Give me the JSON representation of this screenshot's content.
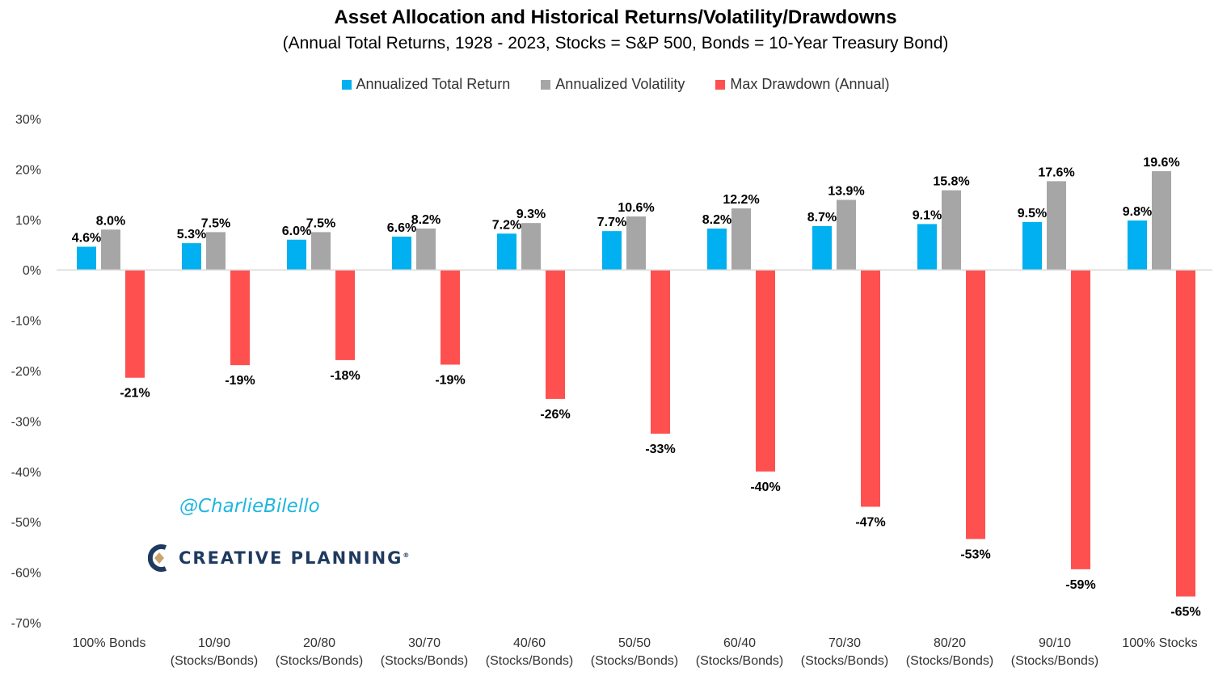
{
  "colors": {
    "return": "#00b0f0",
    "volatility": "#a6a6a6",
    "drawdown": "#ff5050",
    "gridline": "#d9d9d9",
    "watermark": "#1fb6e0",
    "logo": "#1f3a5f",
    "logo_accent": "#c9a46b"
  },
  "watermark": "@CharlieBilello",
  "logo": {
    "icon": "creative-planning-logo-icon",
    "text": "CREATIVE PLANNING",
    "mark": "®"
  },
  "chart_data": {
    "type": "bar",
    "title": "Asset Allocation and Historical Returns/Volatility/Drawdowns",
    "subtitle": "(Annual Total Returns, 1928 - 2023, Stocks = S&P 500, Bonds = 10-Year Treasury Bond)",
    "categories": [
      [
        "100% Bonds"
      ],
      [
        "10/90",
        "(Stocks/Bonds)"
      ],
      [
        "20/80",
        "(Stocks/Bonds)"
      ],
      [
        "30/70",
        "(Stocks/Bonds)"
      ],
      [
        "40/60",
        "(Stocks/Bonds)"
      ],
      [
        "50/50",
        "(Stocks/Bonds)"
      ],
      [
        "60/40",
        "(Stocks/Bonds)"
      ],
      [
        "70/30",
        "(Stocks/Bonds)"
      ],
      [
        "80/20",
        "(Stocks/Bonds)"
      ],
      [
        "90/10",
        "(Stocks/Bonds)"
      ],
      [
        "100% Stocks"
      ]
    ],
    "series": [
      {
        "name": "Annualized Total Return",
        "color_key": "return",
        "values": [
          4.6,
          5.3,
          6.0,
          6.6,
          7.2,
          7.7,
          8.2,
          8.7,
          9.1,
          9.5,
          9.8
        ],
        "labels": [
          "4.6%",
          "5.3%",
          "6.0%",
          "6.6%",
          "7.2%",
          "7.7%",
          "8.2%",
          "8.7%",
          "9.1%",
          "9.5%",
          "9.8%"
        ]
      },
      {
        "name": "Annualized Volatility",
        "color_key": "volatility",
        "values": [
          8.0,
          7.5,
          7.5,
          8.2,
          9.3,
          10.6,
          12.2,
          13.9,
          15.8,
          17.6,
          19.6
        ],
        "labels": [
          "8.0%",
          "7.5%",
          "7.5%",
          "8.2%",
          "9.3%",
          "10.6%",
          "12.2%",
          "13.9%",
          "15.8%",
          "17.6%",
          "19.6%"
        ]
      },
      {
        "name": "Max Drawdown (Annual)",
        "color_key": "drawdown",
        "values": [
          -21.4,
          -18.9,
          -17.9,
          -18.8,
          -25.6,
          -32.5,
          -40.0,
          -47.0,
          -53.4,
          -59.4,
          -64.8
        ],
        "labels": [
          "-21%",
          "-19%",
          "-18%",
          "-19%",
          "-26%",
          "-33%",
          "-40%",
          "-47%",
          "-53%",
          "-59%",
          "-65%"
        ]
      }
    ],
    "yticks": [
      30,
      20,
      10,
      0,
      -10,
      -20,
      -30,
      -40,
      -50,
      -60,
      -70
    ],
    "ytick_labels": [
      "30%",
      "20%",
      "10%",
      "0%",
      "-10%",
      "-20%",
      "-30%",
      "-40%",
      "-50%",
      "-60%",
      "-70%"
    ],
    "ylim": [
      -70,
      30
    ],
    "xlabel": "",
    "ylabel": "",
    "grid": false,
    "legend_position": "top-center"
  }
}
